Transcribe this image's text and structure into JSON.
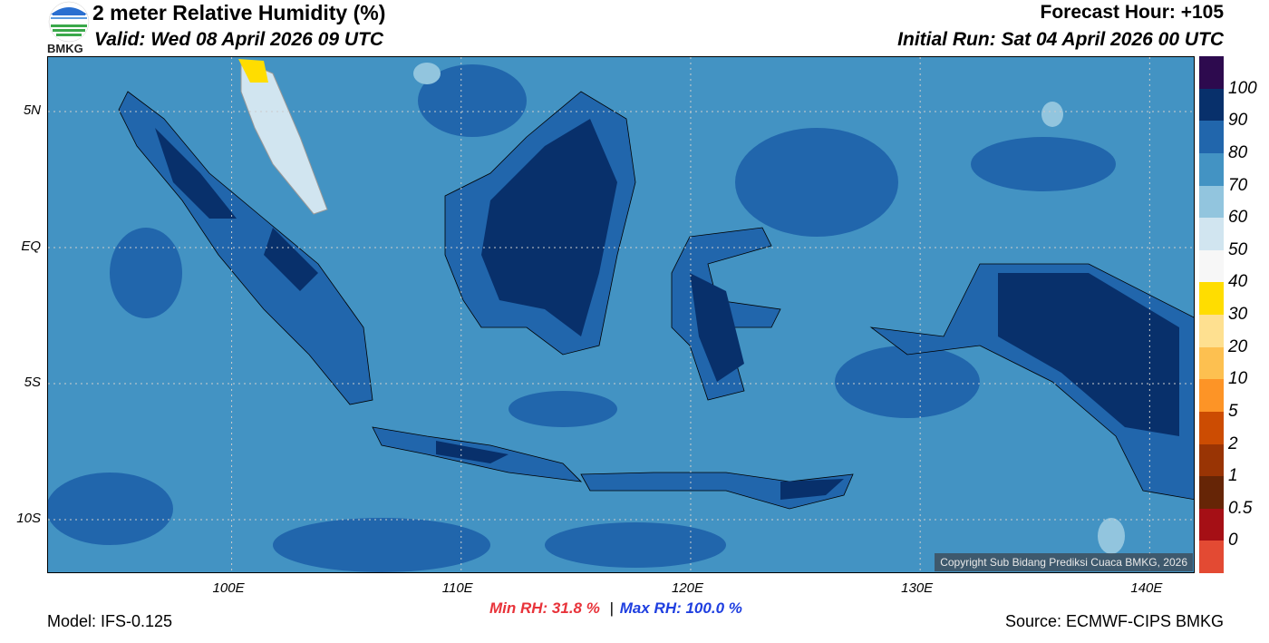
{
  "header": {
    "title": "2 meter Relative Humidity (%)",
    "valid": "Valid: Wed 08 April 2026 09 UTC",
    "forecast_hour": "Forecast Hour: +105",
    "initial_run": "Initial Run: Sat 04 April 2026 00 UTC"
  },
  "logo": {
    "text": "BMKG"
  },
  "map": {
    "lon_range": [
      92,
      142
    ],
    "lat_range": [
      -12,
      7
    ],
    "x_ticks": [
      {
        "lon": 100,
        "label": "100E"
      },
      {
        "lon": 110,
        "label": "110E"
      },
      {
        "lon": 120,
        "label": "120E"
      },
      {
        "lon": 130,
        "label": "130E"
      },
      {
        "lon": 140,
        "label": "140E"
      }
    ],
    "y_ticks": [
      {
        "lat": 5,
        "label": "5N"
      },
      {
        "lat": 0,
        "label": "EQ"
      },
      {
        "lat": -5,
        "label": "5S"
      },
      {
        "lat": -10,
        "label": "10S"
      }
    ],
    "copyright": "Copyright Sub Bidang Prediksi Cuaca BMKG, 2026"
  },
  "colorbar": {
    "labels": [
      "100",
      "90",
      "80",
      "70",
      "60",
      "50",
      "40",
      "30",
      "20",
      "10",
      "5",
      "2",
      "1",
      "0.5",
      "0"
    ],
    "colors": [
      "#2d0a4e",
      "#08306b",
      "#2166ac",
      "#4393c3",
      "#92c5de",
      "#d1e5f0",
      "#f7f7f7",
      "#ffdd00",
      "#fee090",
      "#fdc050",
      "#fd9426",
      "#cc4c02",
      "#993404",
      "#662506",
      "#a50f15",
      "#e34a33"
    ]
  },
  "footer": {
    "model": "Model: IFS-0.125",
    "min_rh": "Min RH:  31.8 %",
    "separator": "|",
    "max_rh": "Max RH: 100.0 %",
    "source": "Source: ECMWF-CIPS BMKG",
    "min_color": "#e8333a",
    "max_color": "#1f3fe0"
  }
}
